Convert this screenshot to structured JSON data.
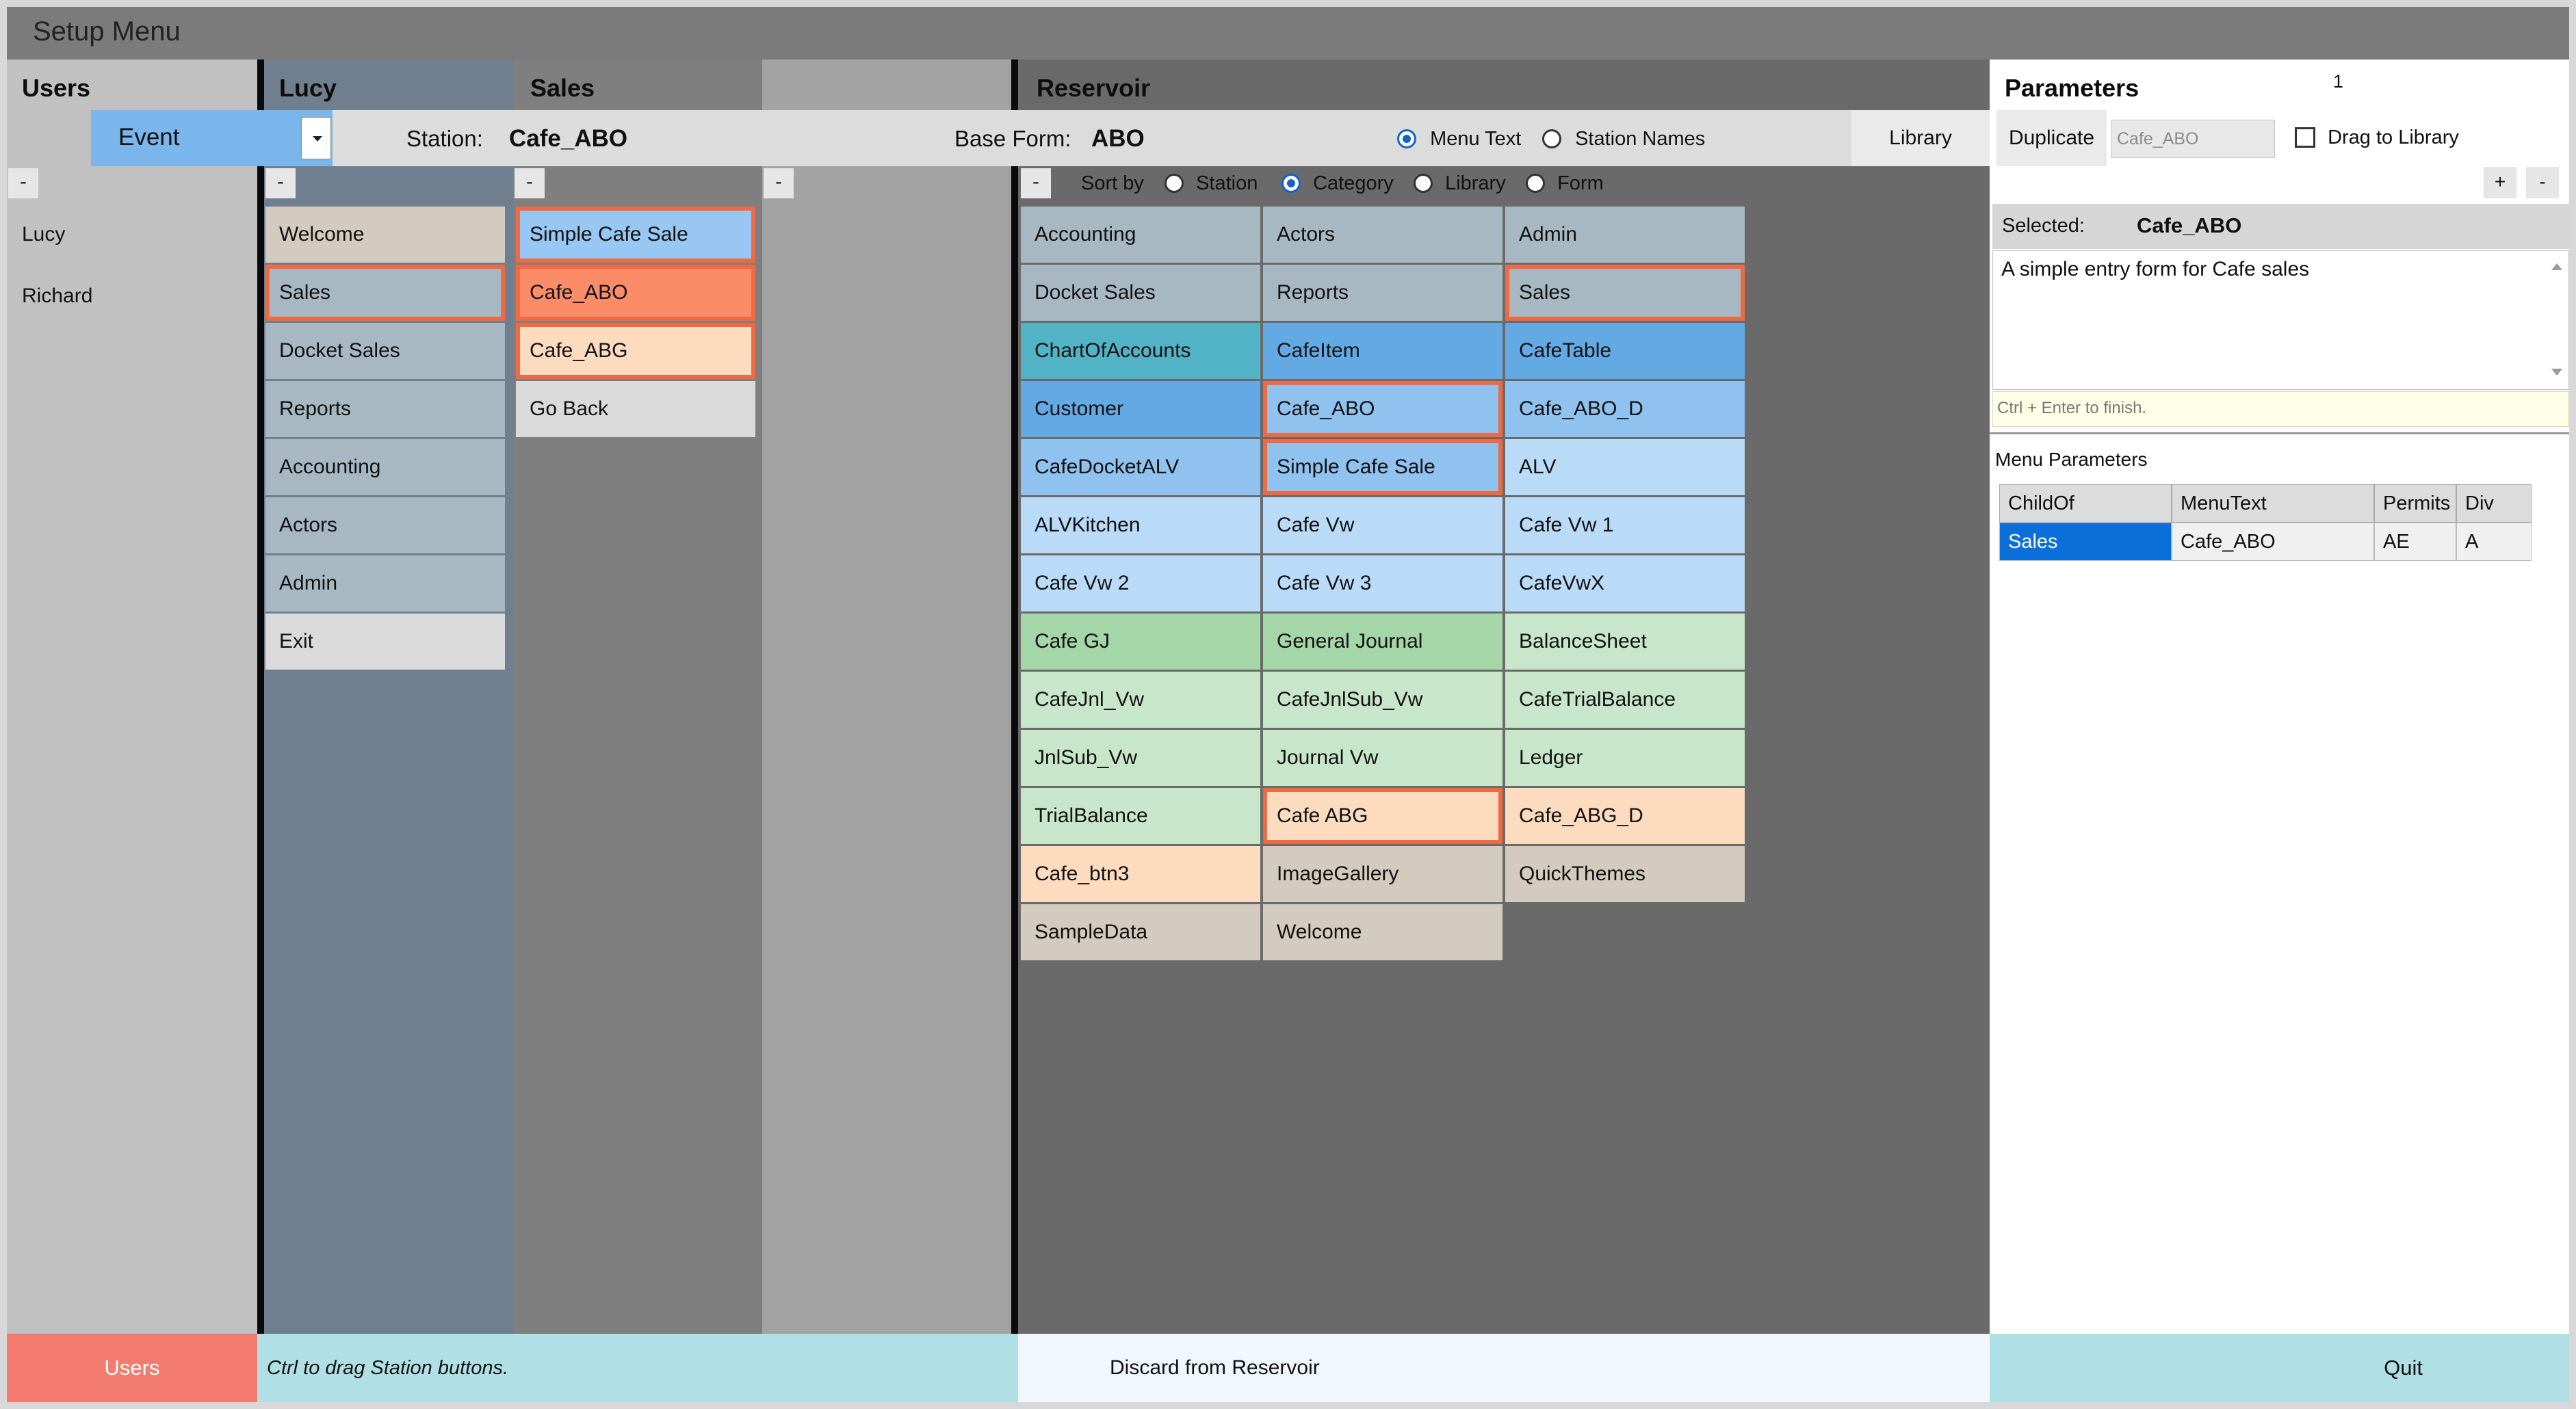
{
  "window": {
    "title": "Setup Menu"
  },
  "columns": {
    "users": "Users",
    "lucy": "Lucy",
    "sales": "Sales",
    "reservoir": "Reservoir",
    "parameters": "Parameters",
    "parameters_count": "1"
  },
  "event_select": {
    "value": "Event"
  },
  "station": {
    "label": "Station:",
    "value": "Cafe_ABO"
  },
  "base_form": {
    "label": "Base Form:",
    "value": "ABO"
  },
  "display_mode": {
    "options": [
      "Menu Text",
      "Station Names"
    ],
    "selected": "Menu Text"
  },
  "library_button": "Library",
  "minus": "-",
  "plus": "+",
  "sort": {
    "label": "Sort by",
    "options": [
      "Station",
      "Category",
      "Library",
      "Form"
    ],
    "selected": "Category"
  },
  "users_list": [
    "Lucy",
    "Richard"
  ],
  "lucy_menu": [
    {
      "label": "Welcome",
      "color": "#d3cbbf",
      "selected": false
    },
    {
      "label": "Sales",
      "color": "#a8b8c3",
      "selected": true
    },
    {
      "label": "Docket Sales",
      "color": "#a8b8c3",
      "selected": false
    },
    {
      "label": "Reports",
      "color": "#a8b8c3",
      "selected": false
    },
    {
      "label": "Accounting",
      "color": "#a8b8c3",
      "selected": false
    },
    {
      "label": "Actors",
      "color": "#a8b8c3",
      "selected": false
    },
    {
      "label": "Admin",
      "color": "#a8b8c3",
      "selected": false
    },
    {
      "label": "Exit",
      "color": "#dadada",
      "selected": false
    }
  ],
  "sales_menu": [
    {
      "label": "Simple Cafe Sale",
      "color": "#97c7f2",
      "selected": true
    },
    {
      "label": "Cafe_ABO",
      "color": "#fa8d67",
      "selected": true
    },
    {
      "label": "Cafe_ABG",
      "color": "#fddbbf",
      "selected": true
    },
    {
      "label": "Go Back",
      "color": "#dadada",
      "selected": false
    }
  ],
  "reservoir": [
    {
      "label": "Accounting",
      "color": "#a8b8c3",
      "selected": false
    },
    {
      "label": "Actors",
      "color": "#a8b8c3",
      "selected": false
    },
    {
      "label": "Admin",
      "color": "#a8b8c3",
      "selected": false
    },
    {
      "label": "Docket Sales",
      "color": "#a8b8c3",
      "selected": false
    },
    {
      "label": "Reports",
      "color": "#a8b8c3",
      "selected": false
    },
    {
      "label": "Sales",
      "color": "#a8b8c3",
      "selected": true
    },
    {
      "label": "ChartOfAccounts",
      "color": "#52b3c6",
      "selected": false
    },
    {
      "label": "CafeItem",
      "color": "#63aae4",
      "selected": false
    },
    {
      "label": "CafeTable",
      "color": "#63aae4",
      "selected": false
    },
    {
      "label": "Customer",
      "color": "#63aae4",
      "selected": false
    },
    {
      "label": "Cafe_ABO",
      "color": "#90c2ef",
      "selected": true
    },
    {
      "label": "Cafe_ABO_D",
      "color": "#90c2ef",
      "selected": false
    },
    {
      "label": "CafeDocketALV",
      "color": "#90c2ef",
      "selected": false
    },
    {
      "label": "Simple Cafe Sale",
      "color": "#90c2ef",
      "selected": true
    },
    {
      "label": "ALV",
      "color": "#b9dbf7",
      "selected": false
    },
    {
      "label": "ALVKitchen",
      "color": "#b9dbf7",
      "selected": false
    },
    {
      "label": "Cafe Vw",
      "color": "#b9dbf7",
      "selected": false
    },
    {
      "label": "Cafe Vw 1",
      "color": "#b9dbf7",
      "selected": false
    },
    {
      "label": "Cafe Vw 2",
      "color": "#b9dbf7",
      "selected": false
    },
    {
      "label": "Cafe Vw 3",
      "color": "#b9dbf7",
      "selected": false
    },
    {
      "label": "CafeVwX",
      "color": "#b9dbf7",
      "selected": false
    },
    {
      "label": "Cafe GJ",
      "color": "#a5d6a7",
      "selected": false
    },
    {
      "label": "General Journal",
      "color": "#a5d6a7",
      "selected": false
    },
    {
      "label": "BalanceSheet",
      "color": "#c8e6c9",
      "selected": false
    },
    {
      "label": "CafeJnl_Vw",
      "color": "#c8e6c9",
      "selected": false
    },
    {
      "label": "CafeJnlSub_Vw",
      "color": "#c8e6c9",
      "selected": false
    },
    {
      "label": "CafeTrialBalance",
      "color": "#c8e6c9",
      "selected": false
    },
    {
      "label": "JnlSub_Vw",
      "color": "#c8e6c9",
      "selected": false
    },
    {
      "label": "Journal Vw",
      "color": "#c8e6c9",
      "selected": false
    },
    {
      "label": "Ledger",
      "color": "#c8e6c9",
      "selected": false
    },
    {
      "label": "TrialBalance",
      "color": "#c8e6c9",
      "selected": false
    },
    {
      "label": "Cafe ABG",
      "color": "#fddbbf",
      "selected": true
    },
    {
      "label": "Cafe_ABG_D",
      "color": "#fddbbf",
      "selected": false
    },
    {
      "label": "Cafe_btn3",
      "color": "#fddbbf",
      "selected": false
    },
    {
      "label": "ImageGallery",
      "color": "#d3cbbf",
      "selected": false
    },
    {
      "label": "QuickThemes",
      "color": "#d3cbbf",
      "selected": false
    },
    {
      "label": "SampleData",
      "color": "#d3cbbf",
      "selected": false
    },
    {
      "label": "Welcome",
      "color": "#d3cbbf",
      "selected": false
    }
  ],
  "params": {
    "duplicate_button": "Duplicate",
    "duplicate_placeholder": "Cafe_ABO",
    "drag_to_library": "Drag to Library",
    "selected_label": "Selected:",
    "selected_value": "Cafe_ABO",
    "description": "A simple entry form for Cafe sales",
    "hint": "Ctrl + Enter to finish.",
    "menu_parameters": "Menu Parameters",
    "grid_headers": [
      "ChildOf",
      "MenuText",
      "Permits",
      "Div"
    ],
    "grid_rows": [
      [
        "Sales",
        "Cafe_ABO",
        "AE",
        "A"
      ]
    ]
  },
  "bottom": {
    "users_button": "Users",
    "hint": "Ctrl to drag Station buttons.",
    "discard": "Discard from Reservoir",
    "quit": "Quit"
  },
  "colors": {
    "selected_border": "#ef6a43",
    "grid_highlight": "#0a6fd8",
    "bottom_users": "#f47c6f",
    "bottom_bar": "#b0dfe5"
  }
}
